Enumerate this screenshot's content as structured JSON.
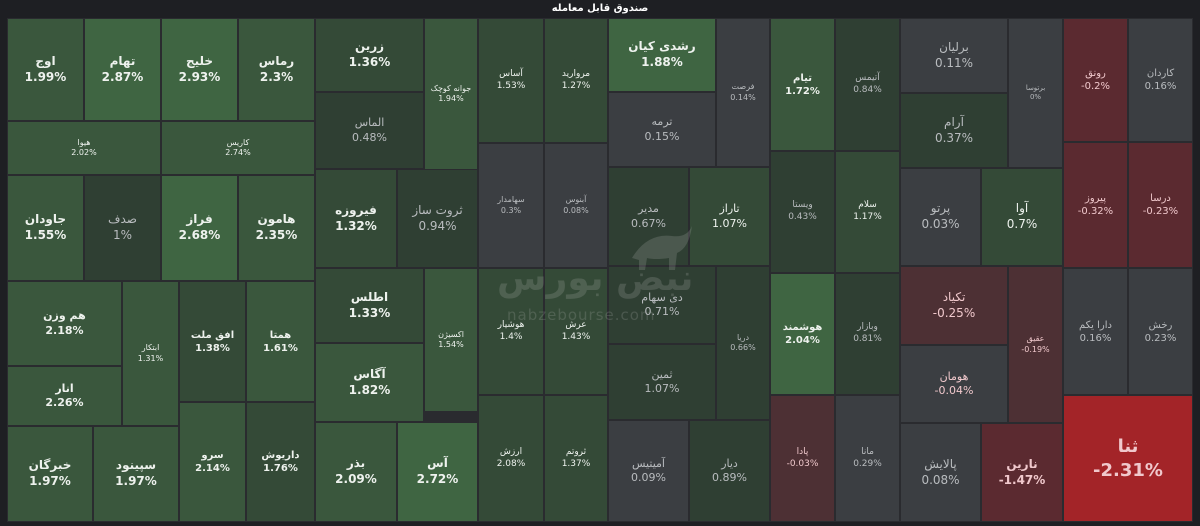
{
  "title": "صندوق قابل معامله",
  "watermark": {
    "text": "نبض بورس",
    "url": "nabzebourse.com"
  },
  "colors": {
    "green_1": "#2f3f33",
    "green_2": "#344a37",
    "green_3": "#3a573d",
    "green_4": "#3f6542",
    "neutral": "#3b3e42",
    "red_1": "#4d3034",
    "red_2": "#5b2a30",
    "red_strong": "#a32428"
  },
  "tiles": [
    {
      "name": "اوج",
      "pct": "1.99%"
    },
    {
      "name": "تهام",
      "pct": "2.87%"
    },
    {
      "name": "خلیج",
      "pct": "2.93%"
    },
    {
      "name": "رماس",
      "pct": "2.3%"
    },
    {
      "name": "هیوا",
      "pct": "2.02%"
    },
    {
      "name": "کاریس",
      "pct": "2.74%"
    },
    {
      "name": "جاودان",
      "pct": "1.55%"
    },
    {
      "name": "صدف",
      "pct": "1%"
    },
    {
      "name": "فراز",
      "pct": "2.68%"
    },
    {
      "name": "هامون",
      "pct": "2.35%"
    },
    {
      "name": "هم وزن",
      "pct": "2.18%"
    },
    {
      "name": "ابتکار",
      "pct": "1.31%"
    },
    {
      "name": "افق ملت",
      "pct": "1.38%"
    },
    {
      "name": "همتا",
      "pct": "1.61%"
    },
    {
      "name": "انار",
      "pct": "2.26%"
    },
    {
      "name": "سرو",
      "pct": "2.14%"
    },
    {
      "name": "داریوش",
      "pct": "1.76%"
    },
    {
      "name": "خبرگان",
      "pct": "1.97%"
    },
    {
      "name": "سپینود",
      "pct": "1.97%"
    },
    {
      "name": "زرین",
      "pct": "1.36%"
    },
    {
      "name": "جوانه کوچک",
      "pct": "1.94%"
    },
    {
      "name": "الماس",
      "pct": "0.48%"
    },
    {
      "name": "فیروزه",
      "pct": "1.32%"
    },
    {
      "name": "ثروت ساز",
      "pct": "0.94%"
    },
    {
      "name": "اطلس",
      "pct": "1.33%"
    },
    {
      "name": "اکسیژن",
      "pct": "1.54%"
    },
    {
      "name": "آگاس",
      "pct": "1.82%"
    },
    {
      "name": "بذر",
      "pct": "2.09%"
    },
    {
      "name": "آس",
      "pct": "2.72%"
    },
    {
      "name": "آساس",
      "pct": "1.53%"
    },
    {
      "name": "مروارید",
      "pct": "1.27%"
    },
    {
      "name": "سهامدار",
      "pct": "0.3%"
    },
    {
      "name": "آبنوس",
      "pct": "0.08%"
    },
    {
      "name": "هوشیار",
      "pct": "1.4%"
    },
    {
      "name": "عرش",
      "pct": "1.43%"
    },
    {
      "name": "ارزش",
      "pct": "2.08%"
    },
    {
      "name": "ثروتم",
      "pct": "1.37%"
    },
    {
      "name": "رشدی کیان",
      "pct": "1.88%"
    },
    {
      "name": "فرصت",
      "pct": "0.14%"
    },
    {
      "name": "ترمه",
      "pct": "0.15%"
    },
    {
      "name": "مدیر",
      "pct": "0.67%"
    },
    {
      "name": "تاراز",
      "pct": "1.07%"
    },
    {
      "name": "دی سهام",
      "pct": "0.71%"
    },
    {
      "name": "دریا",
      "pct": "0.66%"
    },
    {
      "name": "ثمین",
      "pct": "1.07%"
    },
    {
      "name": "آمیتیس",
      "pct": "0.09%"
    },
    {
      "name": "دیار",
      "pct": "0.89%"
    },
    {
      "name": "تیام",
      "pct": "1.72%"
    },
    {
      "name": "آتیمس",
      "pct": "0.84%"
    },
    {
      "name": "ویستا",
      "pct": "0.43%"
    },
    {
      "name": "سلام",
      "pct": "1.17%"
    },
    {
      "name": "هوشمند",
      "pct": "2.04%"
    },
    {
      "name": "وبازار",
      "pct": "0.81%"
    },
    {
      "name": "پادا",
      "pct": "-0.03%"
    },
    {
      "name": "مانا",
      "pct": "0.29%"
    },
    {
      "name": "برلیان",
      "pct": "0.11%"
    },
    {
      "name": "برتوسا",
      "pct": "0%"
    },
    {
      "name": "آرام",
      "pct": "0.37%"
    },
    {
      "name": "پرتو",
      "pct": "0.03%"
    },
    {
      "name": "آوا",
      "pct": "0.7%"
    },
    {
      "name": "تکیاد",
      "pct": "-0.25%"
    },
    {
      "name": "عقیق",
      "pct": "-0.19%"
    },
    {
      "name": "هومان",
      "pct": "-0.04%"
    },
    {
      "name": "پالایش",
      "pct": "0.08%"
    },
    {
      "name": "نارین",
      "pct": "-1.47%"
    },
    {
      "name": "رونق",
      "pct": "-0.2%"
    },
    {
      "name": "کاردان",
      "pct": "0.16%"
    },
    {
      "name": "پیروز",
      "pct": "-0.32%"
    },
    {
      "name": "درسا",
      "pct": "-0.23%"
    },
    {
      "name": "دارا یکم",
      "pct": "0.16%"
    },
    {
      "name": "رخش",
      "pct": "0.23%"
    },
    {
      "name": "ثنا",
      "pct": "-2.31%"
    }
  ]
}
